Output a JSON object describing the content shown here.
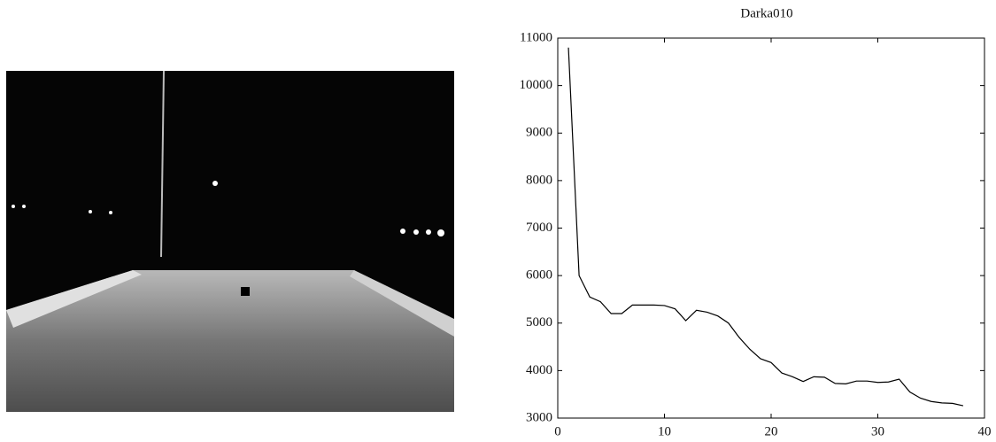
{
  "chart_data": {
    "type": "line",
    "title": "Darka010",
    "color": "#000000",
    "x": [
      1,
      2,
      3,
      4,
      5,
      6,
      7,
      8,
      9,
      10,
      11,
      12,
      13,
      14,
      15,
      16,
      17,
      18,
      19,
      20,
      21,
      22,
      23,
      24,
      25,
      26,
      27,
      28,
      29,
      30,
      31,
      32,
      33,
      34,
      35,
      36,
      37,
      38
    ],
    "values": [
      10800,
      6000,
      5550,
      5450,
      5200,
      5200,
      5380,
      5380,
      5380,
      5370,
      5300,
      5050,
      5270,
      5230,
      5150,
      5000,
      4700,
      4450,
      4250,
      4170,
      3950,
      3870,
      3770,
      3870,
      3860,
      3730,
      3720,
      3780,
      3780,
      3750,
      3760,
      3820,
      3550,
      3420,
      3350,
      3320,
      3310,
      3260
    ],
    "xlim": [
      0,
      40
    ],
    "xticks": [
      0,
      10,
      20,
      30,
      40
    ],
    "ylim": [
      3000,
      11000
    ],
    "yticks": [
      3000,
      4000,
      5000,
      6000,
      7000,
      8000,
      9000,
      10000,
      11000
    ]
  }
}
